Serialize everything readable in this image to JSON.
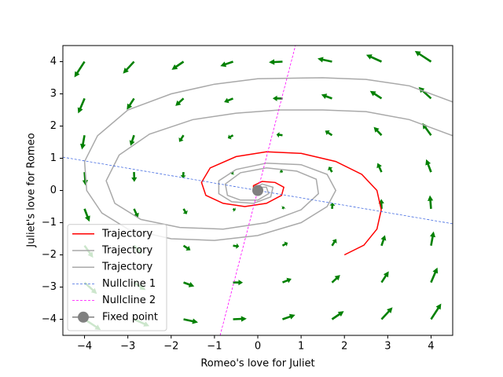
{
  "chart_data": {
    "type": "phase",
    "xlabel": "Romeo's love for Juliet",
    "ylabel": "Juliet's love for Romeo",
    "xlim": [
      -4.5,
      4.5
    ],
    "ylim": [
      -4.5,
      4.5
    ],
    "xticks": [
      {
        "value": -4,
        "label": "−4"
      },
      {
        "value": -3,
        "label": "−3"
      },
      {
        "value": -2,
        "label": "−2"
      },
      {
        "value": -1,
        "label": "−1"
      },
      0,
      1,
      2,
      3,
      4
    ],
    "yticks": [
      {
        "value": -4,
        "label": "−4"
      },
      {
        "value": -3,
        "label": "−3"
      },
      {
        "value": -2,
        "label": "−2"
      },
      {
        "value": -1,
        "label": "−1"
      },
      0,
      1,
      2,
      3,
      4
    ],
    "legend": "lower left",
    "quiver": {
      "color": "#008000",
      "x": [
        -4,
        -2.857,
        -1.714,
        -0.571,
        0.571,
        1.714,
        2.857,
        4
      ],
      "y": [
        -4,
        -2.857,
        -1.714,
        -0.571,
        0.571,
        1.714,
        2.857,
        4
      ],
      "u": [
        [
          4.92,
          4.66,
          4.39,
          4.13,
          3.87,
          3.61,
          3.34,
          3.08
        ],
        [
          3.78,
          3.51,
          3.25,
          2.99,
          2.73,
          2.46,
          2.2,
          1.94
        ],
        [
          2.63,
          2.37,
          2.11,
          1.85,
          1.58,
          1.32,
          1.06,
          0.79
        ],
        [
          1.49,
          1.23,
          0.97,
          0.7,
          0.44,
          0.18,
          -0.09,
          -0.35
        ],
        [
          0.35,
          0.09,
          -0.18,
          -0.44,
          -0.7,
          -0.97,
          -1.23,
          -1.49
        ],
        [
          -0.79,
          -1.06,
          -1.32,
          -1.58,
          -1.85,
          -2.11,
          -2.37,
          -2.63
        ],
        [
          -1.94,
          -2.2,
          -2.46,
          -2.73,
          -2.99,
          -3.25,
          -3.51,
          -3.78
        ],
        [
          -3.08,
          -3.34,
          -3.61,
          -3.87,
          -4.13,
          -4.39,
          -4.66,
          -4.92
        ]
      ],
      "v": [
        [
          -3.24,
          -2.1,
          -0.95,
          0.19,
          1.33,
          2.47,
          3.62,
          4.76
        ],
        [
          -3.46,
          -2.31,
          -1.17,
          -0.03,
          1.11,
          2.26,
          3.4,
          4.54
        ],
        [
          -3.67,
          -2.53,
          -1.39,
          -0.25,
          0.9,
          2.04,
          3.18,
          4.33
        ],
        [
          -3.89,
          -2.75,
          -1.61,
          -0.46,
          0.68,
          1.82,
          2.97,
          4.11
        ],
        [
          -4.11,
          -2.97,
          -1.82,
          -0.68,
          0.46,
          1.61,
          2.75,
          3.89
        ],
        [
          -4.33,
          -3.18,
          -2.04,
          -0.9,
          0.25,
          1.39,
          2.53,
          3.67
        ],
        [
          -4.54,
          -3.4,
          -2.26,
          -1.11,
          0.03,
          1.17,
          2.31,
          3.46
        ],
        [
          -4.76,
          -3.62,
          -2.47,
          -1.33,
          -0.19,
          0.95,
          2.1,
          3.24
        ]
      ]
    },
    "series": [
      {
        "name": "Trajectory",
        "color": "#ff0000",
        "linestyle": "solid",
        "x": [
          2,
          2.45,
          2.75,
          2.85,
          2.75,
          2.4,
          1.8,
          1.0,
          0.2,
          -0.5,
          -1.1,
          -1.3,
          -1.2,
          -0.8,
          -0.3,
          0.2,
          0.55,
          0.6,
          0.4,
          0.1,
          -0.1,
          -0.1,
          0
        ],
        "y": [
          -2,
          -1.7,
          -1.2,
          -0.6,
          0,
          0.5,
          0.9,
          1.15,
          1.2,
          1.05,
          0.7,
          0.25,
          -0.15,
          -0.4,
          -0.5,
          -0.4,
          -0.15,
          0.1,
          0.25,
          0.28,
          0.15,
          0,
          -0.05
        ]
      },
      {
        "name": "Trajectory",
        "color": "#a9a9a9",
        "linestyle": "solid",
        "x": [
          4.5,
          3.5,
          2.5,
          1.5,
          0,
          -1,
          -2,
          -3,
          -3.7,
          -4.0,
          -3.95,
          -3.6,
          -3,
          -2,
          -1,
          0,
          1,
          1.6,
          1.8,
          1.6,
          1.0,
          0.2,
          -0.5,
          -0.9,
          -0.9,
          -0.6,
          -0.1,
          0.3,
          0.35,
          0.1,
          -0.1,
          0
        ],
        "y": [
          2.75,
          3.25,
          3.45,
          3.5,
          3.47,
          3.3,
          3.0,
          2.5,
          1.7,
          0.9,
          0,
          -0.7,
          -1.2,
          -1.5,
          -1.55,
          -1.4,
          -1.0,
          -0.5,
          0,
          0.5,
          0.8,
          0.85,
          0.65,
          0.3,
          -0.1,
          -0.35,
          -0.4,
          -0.2,
          0.1,
          0.2,
          0.05,
          0
        ]
      },
      {
        "name": "Trajectory",
        "color": "#a9a9a9",
        "linestyle": "solid",
        "x": [
          4.5,
          3.5,
          2.5,
          1.5,
          0.5,
          -0.5,
          -1.5,
          -2.5,
          -3.2,
          -3.5,
          -3.3,
          -2.7,
          -1.8,
          -0.8,
          0.2,
          1.0,
          1.4,
          1.35,
          0.9,
          0.2,
          -0.4,
          -0.75,
          -0.7,
          -0.4,
          0,
          0.25,
          0.2,
          0,
          -0.05
        ],
        "y": [
          1.7,
          2.2,
          2.45,
          2.5,
          2.5,
          2.4,
          2.2,
          1.75,
          1.1,
          0.3,
          -0.4,
          -0.9,
          -1.15,
          -1.2,
          -1.0,
          -0.6,
          -0.1,
          0.35,
          0.6,
          0.7,
          0.55,
          0.2,
          -0.15,
          -0.3,
          -0.3,
          -0.1,
          0.1,
          0.1,
          0
        ]
      },
      {
        "name": "Nullcline 1",
        "color": "#4169e1",
        "linestyle": "dashed",
        "x": [
          -4.5,
          4.5
        ],
        "y": [
          1.035,
          -1.035
        ]
      },
      {
        "name": "Nullcline 2",
        "color": "#ff00ff",
        "linestyle": "dashed",
        "x": [
          -0.87,
          0.87
        ],
        "y": [
          -4.5,
          4.5
        ]
      },
      {
        "name": "Fixed point",
        "color": "#808080",
        "linestyle": "solid",
        "marker": "o",
        "x": [
          0
        ],
        "y": [
          0
        ]
      }
    ]
  }
}
